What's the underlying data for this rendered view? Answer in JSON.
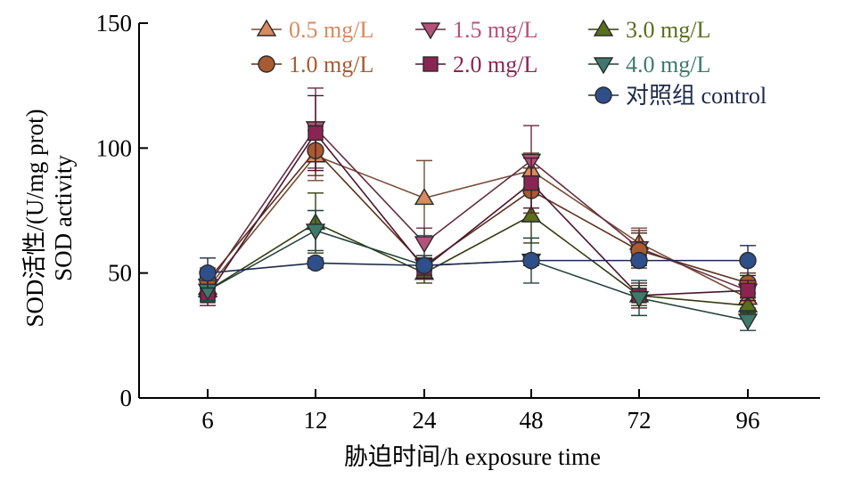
{
  "chart_data": {
    "type": "line",
    "xlabel": "胁迫时间/h exposure time",
    "ylabel_lines": [
      "SOD活性/(U/mg prot)",
      "SOD activity"
    ],
    "categories": [
      "6",
      "12",
      "24",
      "48",
      "72",
      "96"
    ],
    "ylim": [
      0,
      150
    ],
    "yticks": [
      0,
      50,
      100,
      150
    ],
    "grid": false,
    "legend_position": "top-right",
    "series": [
      {
        "name": "0.5 mg/L",
        "marker": "triangle-up",
        "color": "#d98a5e",
        "values": [
          44,
          97,
          80,
          91,
          62,
          40
        ],
        "errors": [
          5,
          10,
          15,
          7,
          6,
          4
        ]
      },
      {
        "name": "1.5 mg/L",
        "marker": "triangle-down",
        "color": "#b5527a",
        "values": [
          45,
          108,
          62,
          95,
          60,
          43
        ],
        "errors": [
          5,
          16,
          6,
          14,
          7,
          4
        ]
      },
      {
        "name": "3.0 mg/L",
        "marker": "triangle-up",
        "color": "#5a6e1c",
        "values": [
          43,
          70,
          50,
          73,
          41,
          37
        ],
        "errors": [
          4,
          12,
          4,
          11,
          4,
          3
        ]
      },
      {
        "name": "1.0 mg/L",
        "marker": "circle",
        "color": "#a85a32",
        "values": [
          47,
          99,
          53,
          83,
          59,
          46
        ],
        "errors": [
          5,
          10,
          4,
          9,
          7,
          4
        ]
      },
      {
        "name": "2.0 mg/L",
        "marker": "square",
        "color": "#8a2553",
        "values": [
          41,
          106,
          52,
          86,
          41,
          43
        ],
        "errors": [
          4,
          15,
          4,
          10,
          5,
          4
        ]
      },
      {
        "name": "4.0 mg/L",
        "marker": "triangle-down",
        "color": "#3d7a6c",
        "values": [
          43,
          67,
          53,
          55,
          40,
          31
        ],
        "errors": [
          4,
          8,
          4,
          9,
          7,
          4
        ]
      },
      {
        "name": "对照组 control",
        "marker": "circle",
        "color": "#2f4f8a",
        "line_color": "#1e2a4a",
        "values": [
          50,
          54,
          53,
          55,
          55,
          55
        ],
        "errors": [
          6,
          2,
          2,
          2,
          2,
          6
        ]
      }
    ]
  }
}
